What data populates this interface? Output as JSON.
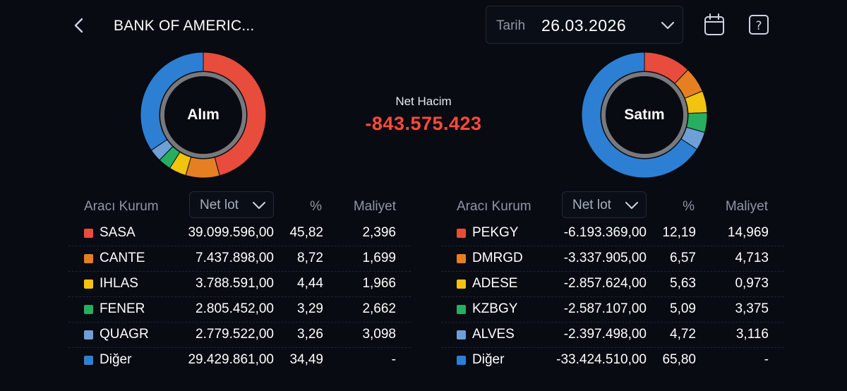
{
  "header": {
    "title": "BANK OF AMERIC...",
    "date_label": "Tarih",
    "date_value": "26.03.2026"
  },
  "icons": [
    "back-arrow-icon",
    "chevron-down-icon",
    "calendar-icon",
    "help-icon"
  ],
  "colors": {
    "background": "#080b12",
    "negative": "#ff4a3a",
    "slice_1": "#e84c3d",
    "slice_2": "#e67e22",
    "slice_3": "#f1c40f",
    "slice_4": "#27ae60",
    "slice_5": "#6e9fd6",
    "slice_other": "#2d7fd3"
  },
  "net": {
    "label": "Net Hacim",
    "value": "-843.575.423"
  },
  "buy": {
    "donut_label": "Alım",
    "columns": {
      "broker": "Aracı Kurum",
      "lot": "Net lot",
      "pct": "%",
      "cost": "Maliyet"
    },
    "rows": [
      {
        "name": "SASA",
        "lot": "39.099.596,00",
        "pct": "45,82",
        "cost": "2,396",
        "pct_value": 45.82,
        "color": "#e84c3d"
      },
      {
        "name": "CANTE",
        "lot": "7.437.898,00",
        "pct": "8,72",
        "cost": "1,699",
        "pct_value": 8.72,
        "color": "#e67e22"
      },
      {
        "name": "IHLAS",
        "lot": "3.788.591,00",
        "pct": "4,44",
        "cost": "1,966",
        "pct_value": 4.44,
        "color": "#f1c40f"
      },
      {
        "name": "FENER",
        "lot": "2.805.452,00",
        "pct": "3,29",
        "cost": "2,662",
        "pct_value": 3.29,
        "color": "#27ae60"
      },
      {
        "name": "QUAGR",
        "lot": "2.779.522,00",
        "pct": "3,26",
        "cost": "3,098",
        "pct_value": 3.26,
        "color": "#6e9fd6"
      },
      {
        "name": "Diğer",
        "lot": "29.429.861,00",
        "pct": "34,49",
        "cost": "-",
        "pct_value": 34.49,
        "color": "#2d7fd3"
      }
    ]
  },
  "sell": {
    "donut_label": "Satım",
    "columns": {
      "broker": "Aracı Kurum",
      "lot": "Net lot",
      "pct": "%",
      "cost": "Maliyet"
    },
    "rows": [
      {
        "name": "PEKGY",
        "lot": "-6.193.369,00",
        "pct": "12,19",
        "cost": "14,969",
        "pct_value": 12.19,
        "color": "#e84c3d"
      },
      {
        "name": "DMRGD",
        "lot": "-3.337.905,00",
        "pct": "6,57",
        "cost": "4,713",
        "pct_value": 6.57,
        "color": "#e67e22"
      },
      {
        "name": "ADESE",
        "lot": "-2.857.624,00",
        "pct": "5,63",
        "cost": "0,973",
        "pct_value": 5.63,
        "color": "#f1c40f"
      },
      {
        "name": "KZBGY",
        "lot": "-2.587.107,00",
        "pct": "5,09",
        "cost": "3,375",
        "pct_value": 5.09,
        "color": "#27ae60"
      },
      {
        "name": "ALVES",
        "lot": "-2.397.498,00",
        "pct": "4,72",
        "cost": "3,116",
        "pct_value": 4.72,
        "color": "#6e9fd6"
      },
      {
        "name": "Diğer",
        "lot": "-33.424.510,00",
        "pct": "65,80",
        "cost": "-",
        "pct_value": 65.8,
        "color": "#2d7fd3"
      }
    ]
  }
}
